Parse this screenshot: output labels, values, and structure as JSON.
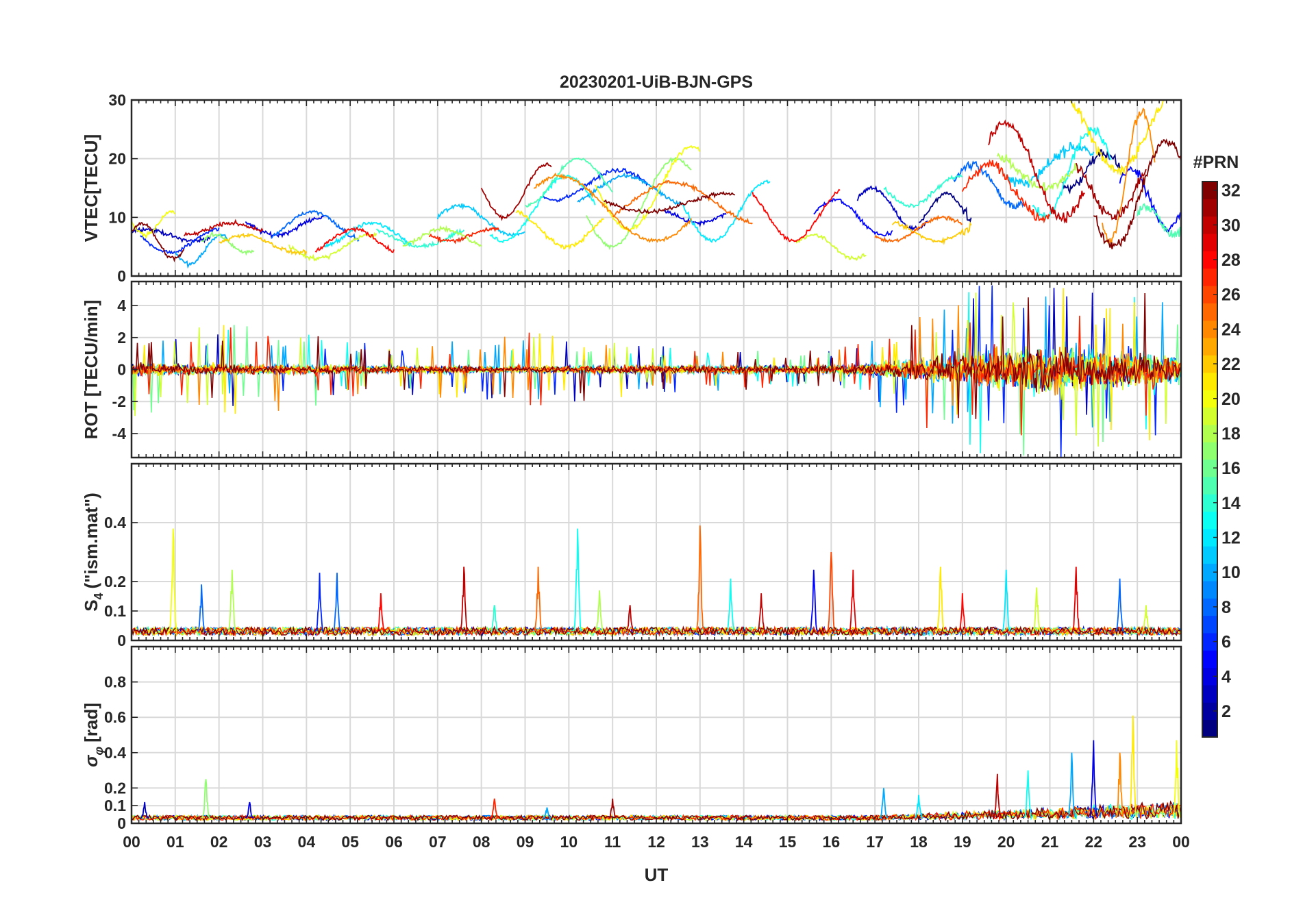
{
  "figure": {
    "title": "20230201-UiB-BJN-GPS"
  },
  "chart_data": [
    {
      "type": "line",
      "panel": "vtec",
      "title": "20230201-UiB-BJN-GPS",
      "ylabel": "VTEC[TECU]",
      "ylim": [
        0,
        30
      ],
      "yticks": [
        0,
        10,
        20,
        30
      ],
      "xlim": [
        0,
        24
      ],
      "grid": true,
      "series_count": 32,
      "series": [
        {
          "prn": 1,
          "segments": [
            [
              21.3,
              22.6,
              15,
              21
            ],
            [
              18.0,
              19.2,
              9,
              14
            ]
          ]
        },
        {
          "prn": 3,
          "segments": [
            [
              0.0,
              1.8,
              6,
              8
            ],
            [
              16.6,
              18.2,
              8,
              15
            ]
          ]
        },
        {
          "prn": 4,
          "segments": [
            [
              2.6,
              4.4,
              7,
              10
            ],
            [
              12.2,
              13.6,
              9,
              11
            ]
          ]
        },
        {
          "prn": 5,
          "segments": [
            [
              15.6,
              17.4,
              7,
              13
            ],
            [
              22.6,
              24.0,
              8,
              18
            ]
          ]
        },
        {
          "prn": 6,
          "segments": [
            [
              0.2,
              2.0,
              4,
              8
            ],
            [
              9.4,
              11.8,
              13,
              18
            ]
          ]
        },
        {
          "prn": 8,
          "segments": [
            [
              3.2,
              5.2,
              6,
              11
            ],
            [
              18.8,
              20.4,
              12,
              19
            ]
          ]
        },
        {
          "prn": 10,
          "segments": [
            [
              1.0,
              2.2,
              2,
              7
            ],
            [
              10.2,
              12.6,
              12,
              17
            ]
          ]
        },
        {
          "prn": 11,
          "segments": [
            [
              7.0,
              9.0,
              7,
              12
            ],
            [
              20.0,
              22.0,
              16,
              22
            ]
          ]
        },
        {
          "prn": 12,
          "segments": [
            [
              4.4,
              6.4,
              5,
              9
            ],
            [
              12.6,
              14.6,
              6,
              16
            ]
          ]
        },
        {
          "prn": 13,
          "segments": [
            [
              8.2,
              10.6,
              6,
              17
            ],
            [
              20.6,
              22.4,
              10,
              25
            ]
          ]
        },
        {
          "prn": 14,
          "segments": [
            [
              5.6,
              7.6,
              5,
              8
            ],
            [
              17.2,
              19.0,
              12,
              17
            ]
          ]
        },
        {
          "prn": 15,
          "segments": [
            [
              9.0,
              11.0,
              12,
              20
            ],
            [
              23.0,
              24.0,
              7,
              12
            ]
          ]
        },
        {
          "prn": 17,
          "segments": [
            [
              1.6,
              2.8,
              4,
              7
            ],
            [
              10.4,
              12.8,
              5,
              20
            ]
          ]
        },
        {
          "prn": 18,
          "segments": [
            [
              6.2,
              8.0,
              5,
              8
            ],
            [
              19.8,
              21.6,
              15,
              20
            ]
          ]
        },
        {
          "prn": 19,
          "segments": [
            [
              3.6,
              5.6,
              3,
              7
            ],
            [
              15.2,
              16.8,
              3,
              7
            ]
          ]
        },
        {
          "prn": 20,
          "segments": [
            [
              0.0,
              1.0,
              7,
              11
            ],
            [
              10.6,
              13.0,
              8,
              22
            ]
          ]
        },
        {
          "prn": 21,
          "segments": [
            [
              21.4,
              23.6,
              18,
              31
            ],
            [
              8.8,
              10.8,
              5,
              11
            ]
          ]
        },
        {
          "prn": 22,
          "segments": [
            [
              2.0,
              4.0,
              4,
              7
            ],
            [
              17.4,
              19.2,
              6,
              9
            ]
          ]
        },
        {
          "prn": 24,
          "segments": [
            [
              9.2,
              12.8,
              6,
              17
            ],
            [
              22.2,
              23.4,
              6,
              28
            ]
          ]
        },
        {
          "prn": 25,
          "segments": [
            [
              11.0,
              14.2,
              9,
              16
            ],
            [
              17.0,
              19.0,
              6,
              10
            ]
          ]
        },
        {
          "prn": 27,
          "segments": [
            [
              6.8,
              8.4,
              6,
              8
            ],
            [
              19.0,
              21.0,
              10,
              19
            ]
          ]
        },
        {
          "prn": 28,
          "segments": [
            [
              4.2,
              6.0,
              4,
              8
            ],
            [
              14.2,
              16.2,
              6,
              15
            ]
          ]
        },
        {
          "prn": 30,
          "segments": [
            [
              1.2,
              3.0,
              7,
              9
            ],
            [
              19.6,
              21.8,
              10,
              26
            ]
          ]
        },
        {
          "prn": 31,
          "segments": [
            [
              8.0,
              9.6,
              10,
              19
            ],
            [
              21.6,
              23.2,
              10,
              19
            ]
          ]
        },
        {
          "prn": 32,
          "segments": [
            [
              0.0,
              1.2,
              3,
              9
            ],
            [
              10.8,
              13.8,
              11,
              14
            ],
            [
              22.0,
              24.0,
              5,
              23
            ]
          ]
        }
      ]
    },
    {
      "type": "line",
      "panel": "rot",
      "ylabel": "ROT [TECU/min]",
      "ylim": [
        -5.5,
        5.5
      ],
      "yticks": [
        -4,
        -2,
        0,
        2,
        4
      ],
      "xlim": [
        0,
        24
      ],
      "grid": true,
      "amplitude_envelope": {
        "hours": [
          0,
          3,
          6,
          9,
          12,
          15,
          16.5,
          17.5,
          18.5,
          19.5,
          20.5,
          21.5,
          22.5,
          23.5,
          24
        ],
        "typical_amplitude": [
          0.6,
          0.5,
          0.35,
          0.35,
          0.4,
          0.4,
          0.5,
          0.9,
          1.3,
          2.0,
          2.4,
          2.2,
          2.0,
          1.8,
          1.2
        ],
        "peak_amplitude": [
          3.0,
          2.8,
          1.5,
          2.4,
          1.5,
          1.2,
          1.5,
          3.0,
          4.0,
          5.5,
          5.5,
          5.5,
          5.5,
          5.5,
          3.0
        ]
      }
    },
    {
      "type": "line",
      "panel": "s4",
      "ylabel": "S₄ (\"ism.mat\")",
      "ylabel_main": "S",
      "ylabel_sub": "4",
      "ylabel_rest": "(\"ism.mat\")",
      "ylim": [
        0,
        0.6
      ],
      "yticks": [
        0,
        0.1,
        0.2,
        0.4
      ],
      "ytick_labels": [
        "0",
        "0.1",
        "0.2",
        "0.4"
      ],
      "xlim": [
        0,
        24
      ],
      "grid": true,
      "baseline": 0.03,
      "spikes": [
        [
          0.95,
          0.38,
          20
        ],
        [
          1.6,
          0.19,
          8
        ],
        [
          2.3,
          0.24,
          18
        ],
        [
          4.3,
          0.23,
          6
        ],
        [
          4.7,
          0.23,
          8
        ],
        [
          5.7,
          0.16,
          28
        ],
        [
          7.6,
          0.25,
          30
        ],
        [
          8.3,
          0.12,
          14
        ],
        [
          9.3,
          0.25,
          25
        ],
        [
          10.2,
          0.38,
          13
        ],
        [
          10.7,
          0.17,
          18
        ],
        [
          11.4,
          0.12,
          30
        ],
        [
          13.0,
          0.39,
          25
        ],
        [
          13.7,
          0.21,
          13
        ],
        [
          14.4,
          0.16,
          30
        ],
        [
          15.6,
          0.24,
          5
        ],
        [
          16.0,
          0.3,
          26
        ],
        [
          16.5,
          0.24,
          29
        ],
        [
          18.5,
          0.25,
          21
        ],
        [
          19.0,
          0.16,
          28
        ],
        [
          20.0,
          0.24,
          12
        ],
        [
          20.7,
          0.18,
          19
        ],
        [
          21.6,
          0.25,
          29
        ],
        [
          22.6,
          0.21,
          8
        ],
        [
          23.2,
          0.12,
          19
        ]
      ]
    },
    {
      "type": "line",
      "panel": "sigma_phi",
      "ylabel": "σφ[rad]",
      "ylabel_main": "σ",
      "ylabel_sub": "φ",
      "ylabel_rest": "[rad]",
      "ylim": [
        0,
        1.0
      ],
      "yticks": [
        0,
        0.1,
        0.2,
        0.4,
        0.6,
        0.8
      ],
      "ytick_labels": [
        "0",
        "0.1",
        "0.2",
        "0.4",
        "0.6",
        "0.8"
      ],
      "xlim": [
        0,
        24
      ],
      "xlabel": "UT",
      "xtick_labels": [
        "00",
        "01",
        "02",
        "03",
        "04",
        "05",
        "06",
        "07",
        "08",
        "09",
        "10",
        "11",
        "12",
        "13",
        "14",
        "15",
        "16",
        "17",
        "18",
        "19",
        "20",
        "21",
        "22",
        "23",
        "00"
      ],
      "grid": true,
      "baseline": 0.03,
      "spikes": [
        [
          0.3,
          0.12,
          3
        ],
        [
          1.7,
          0.25,
          17
        ],
        [
          2.7,
          0.12,
          4
        ],
        [
          8.3,
          0.14,
          27
        ],
        [
          9.5,
          0.09,
          10
        ],
        [
          11.0,
          0.14,
          31
        ],
        [
          17.2,
          0.2,
          10
        ],
        [
          18.0,
          0.16,
          12
        ],
        [
          19.8,
          0.28,
          30
        ],
        [
          20.5,
          0.3,
          13
        ],
        [
          21.5,
          0.4,
          10
        ],
        [
          22.0,
          0.47,
          4
        ],
        [
          22.6,
          0.4,
          24
        ],
        [
          22.9,
          0.61,
          21
        ],
        [
          23.9,
          0.47,
          20
        ]
      ]
    }
  ],
  "colorbar": {
    "label": "#PRN",
    "range": [
      1,
      32
    ],
    "tick_values": [
      2,
      4,
      6,
      8,
      10,
      12,
      14,
      16,
      18,
      20,
      22,
      24,
      26,
      28,
      30,
      32
    ],
    "tick_labels": [
      "2",
      "4",
      "6",
      "8",
      "10",
      "12",
      "14",
      "16",
      "18",
      "20",
      "22",
      "24",
      "26",
      "28",
      "30",
      "32"
    ],
    "colormap": "jet"
  }
}
